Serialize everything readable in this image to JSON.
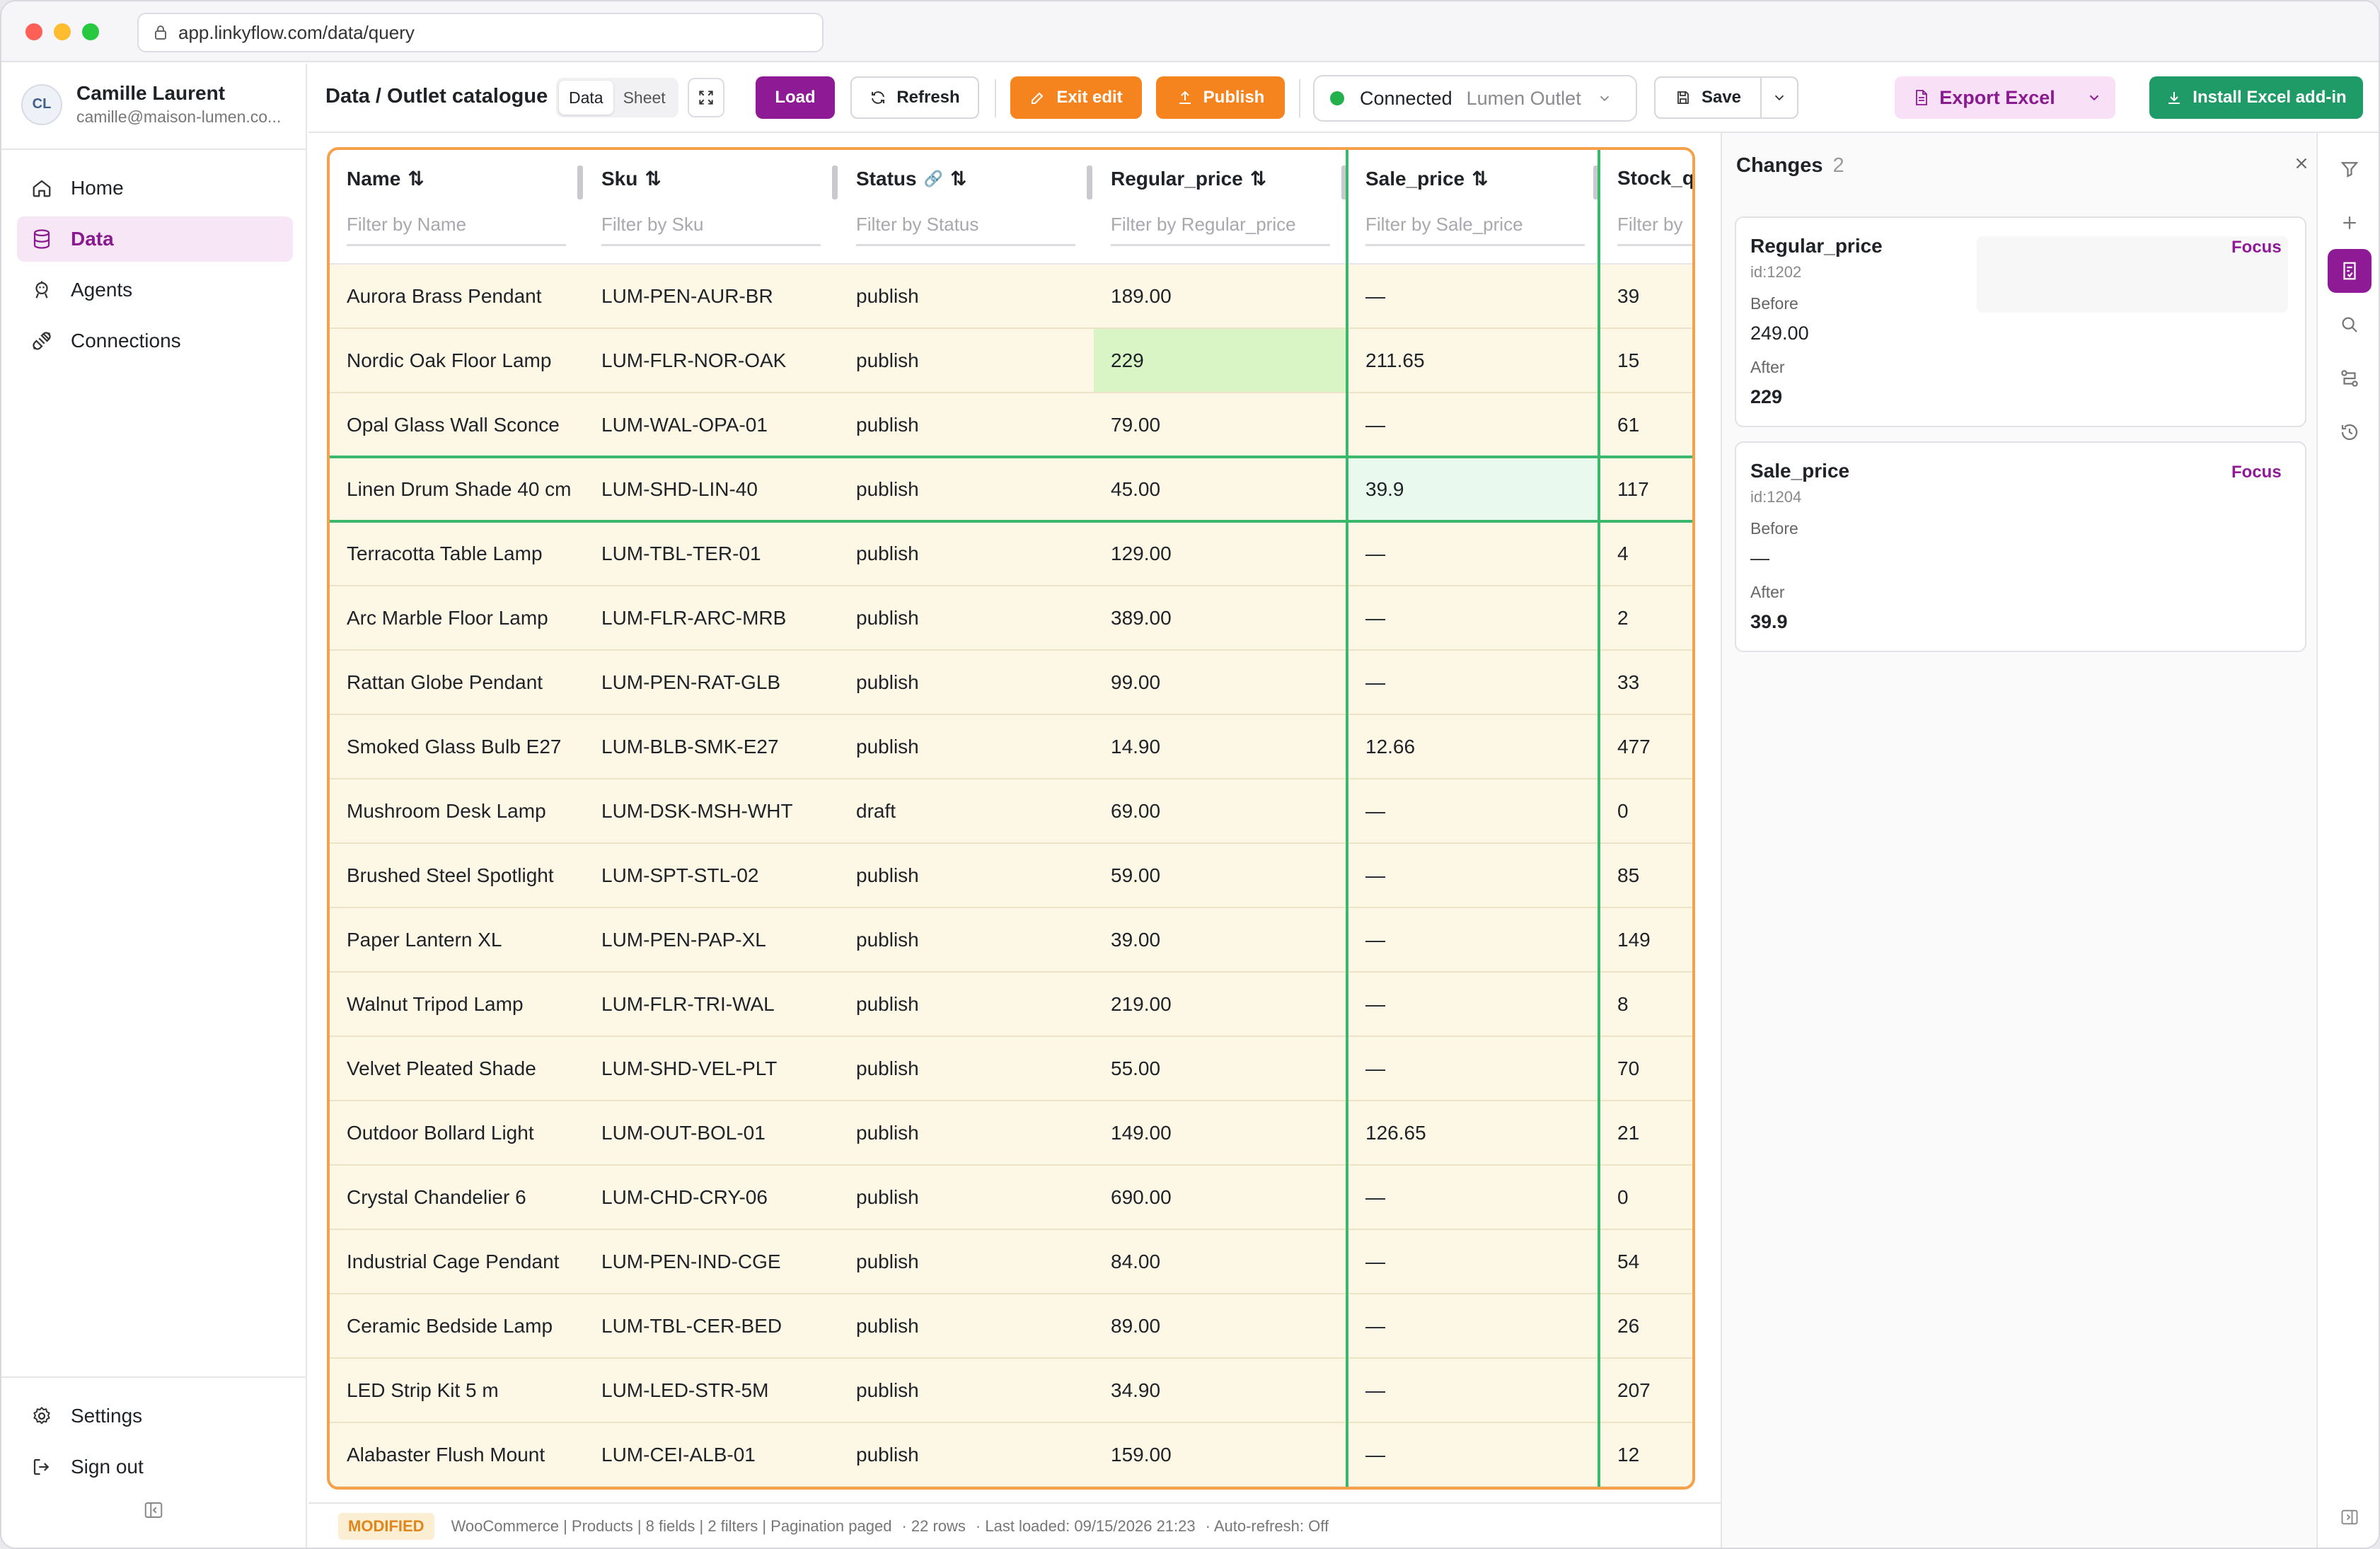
{
  "browser": {
    "url": "app.linkyflow.com/data/query",
    "traffic_lights": [
      "#fe5f57",
      "#febc2e",
      "#28c840"
    ]
  },
  "user": {
    "initials": "CL",
    "name": "Camille Laurent",
    "email": "camille@maison-lumen.co..."
  },
  "sidebar": {
    "items": [
      {
        "label": "Home",
        "icon": "home-icon",
        "active": false
      },
      {
        "label": "Data",
        "icon": "database-icon",
        "active": true
      },
      {
        "label": "Agents",
        "icon": "bot-icon",
        "active": false
      },
      {
        "label": "Connections",
        "icon": "plug-icon",
        "active": false
      }
    ],
    "bottom": [
      {
        "label": "Settings",
        "icon": "gear-icon"
      },
      {
        "label": "Sign out",
        "icon": "sign-out-icon"
      }
    ]
  },
  "toolbar": {
    "title": "Data / Outlet catalogue",
    "view_tabs": [
      "Data",
      "Sheet"
    ],
    "active_view": "Data",
    "load": "Load",
    "refresh": "Refresh",
    "exit_edit": "Exit edit",
    "publish": "Publish",
    "connection_status": "Connected",
    "connection_name": "Lumen Outlet",
    "save": "Save",
    "export_excel": "Export Excel",
    "install_addin": "Install Excel add-in"
  },
  "colors": {
    "accent": "#8e1a95",
    "orange": "#f5841f",
    "green": "#1e9b67",
    "modified_border": "#f5a04a",
    "changed_cell": "#d9f5c5"
  },
  "table": {
    "columns": [
      {
        "label": "Name",
        "filter": "Filter by Name"
      },
      {
        "label": "Sku",
        "filter": "Filter by Sku"
      },
      {
        "label": "Status",
        "filter": "Filter by Status"
      },
      {
        "label": "Regular_price",
        "filter": "Filter by Regular_price"
      },
      {
        "label": "Sale_price",
        "filter": "Filter by Sale_price"
      },
      {
        "label": "Stock_q",
        "filter": "Filter by"
      }
    ],
    "rows": [
      [
        "Aurora Brass Pendant",
        "LUM-PEN-AUR-BR",
        "publish",
        "189.00",
        "—",
        "39"
      ],
      [
        "Nordic Oak Floor Lamp",
        "LUM-FLR-NOR-OAK",
        "publish",
        "229",
        "211.65",
        "15"
      ],
      [
        "Opal Glass Wall Sconce",
        "LUM-WAL-OPA-01",
        "publish",
        "79.00",
        "—",
        "61"
      ],
      [
        "Linen Drum Shade 40 cm",
        "LUM-SHD-LIN-40",
        "publish",
        "45.00",
        "39.9",
        "117"
      ],
      [
        "Terracotta Table Lamp",
        "LUM-TBL-TER-01",
        "publish",
        "129.00",
        "—",
        "4"
      ],
      [
        "Arc Marble Floor Lamp",
        "LUM-FLR-ARC-MRB",
        "publish",
        "389.00",
        "—",
        "2"
      ],
      [
        "Rattan Globe Pendant",
        "LUM-PEN-RAT-GLB",
        "publish",
        "99.00",
        "—",
        "33"
      ],
      [
        "Smoked Glass Bulb E27",
        "LUM-BLB-SMK-E27",
        "publish",
        "14.90",
        "12.66",
        "477"
      ],
      [
        "Mushroom Desk Lamp",
        "LUM-DSK-MSH-WHT",
        "draft",
        "69.00",
        "—",
        "0"
      ],
      [
        "Brushed Steel Spotlight",
        "LUM-SPT-STL-02",
        "publish",
        "59.00",
        "—",
        "85"
      ],
      [
        "Paper Lantern XL",
        "LUM-PEN-PAP-XL",
        "publish",
        "39.00",
        "—",
        "149"
      ],
      [
        "Walnut Tripod Lamp",
        "LUM-FLR-TRI-WAL",
        "publish",
        "219.00",
        "—",
        "8"
      ],
      [
        "Velvet Pleated Shade",
        "LUM-SHD-VEL-PLT",
        "publish",
        "55.00",
        "—",
        "70"
      ],
      [
        "Outdoor Bollard Light",
        "LUM-OUT-BOL-01",
        "publish",
        "149.00",
        "126.65",
        "21"
      ],
      [
        "Crystal Chandelier 6",
        "LUM-CHD-CRY-06",
        "publish",
        "690.00",
        "—",
        "0"
      ],
      [
        "Industrial Cage Pendant",
        "LUM-PEN-IND-CGE",
        "publish",
        "84.00",
        "—",
        "54"
      ],
      [
        "Ceramic Bedside Lamp",
        "LUM-TBL-CER-BED",
        "publish",
        "89.00",
        "—",
        "26"
      ],
      [
        "LED Strip Kit 5 m",
        "LUM-LED-STR-5M",
        "publish",
        "34.90",
        "—",
        "207"
      ],
      [
        "Alabaster Flush Mount",
        "LUM-CEI-ALB-01",
        "publish",
        "159.00",
        "—",
        "12"
      ]
    ],
    "changed_cells": [
      {
        "row": 1,
        "col": 3
      },
      {
        "row": 3,
        "col": 4
      }
    ],
    "selected_row": 3
  },
  "status_bar": {
    "badge": "MODIFIED",
    "source": "WooCommerce | Products | 8 fields | 2 filters | Pagination paged",
    "rows": "· 22 rows",
    "last_loaded": "· Last loaded: 09/15/2026 21:23",
    "auto_refresh": "· Auto-refresh: Off"
  },
  "changes_panel": {
    "title": "Changes",
    "count": "2",
    "items": [
      {
        "field": "Regular_price",
        "id": "id:1202",
        "before_label": "Before",
        "before": "249.00",
        "after_label": "After",
        "after": "229",
        "focus": "Focus"
      },
      {
        "field": "Sale_price",
        "id": "id:1204",
        "before_label": "Before",
        "before": "—",
        "after_label": "After",
        "after": "39.9",
        "focus": "Focus"
      }
    ]
  }
}
